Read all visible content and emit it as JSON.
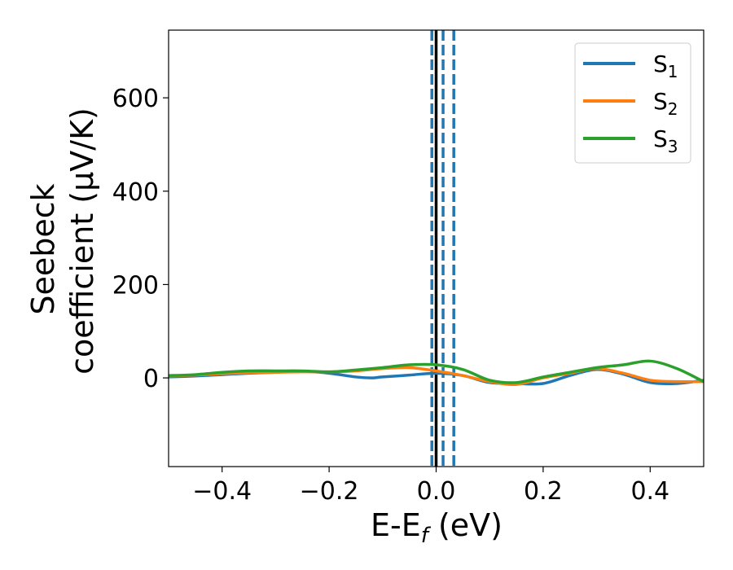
{
  "chart_data": {
    "type": "line",
    "xlabel": "E-E",
    "xlabel_sub": "f",
    "xlabel_unit": " (eV)",
    "ylabel_line1": "Seebeck",
    "ylabel_line2": "coefficient  (μV/K)",
    "xlim": [
      -0.5,
      0.5
    ],
    "ylim": [
      -190,
      745
    ],
    "xticks": [
      -0.4,
      -0.2,
      0.0,
      0.2,
      0.4
    ],
    "xtick_labels": [
      "−0.4",
      "−0.2",
      "0.0",
      "0.2",
      "0.4"
    ],
    "yticks": [
      0,
      200,
      400,
      600
    ],
    "ytick_labels": [
      "0",
      "200",
      "400",
      "600"
    ],
    "legend_position": "top-right",
    "vertical_lines": [
      {
        "x": -0.008,
        "style": "dashed",
        "color": "#1f77b4"
      },
      {
        "x": 0.0,
        "style": "solid",
        "color": "#000000"
      },
      {
        "x": 0.013,
        "style": "dashed",
        "color": "#1f77b4"
      },
      {
        "x": 0.033,
        "style": "dashed",
        "color": "#1f77b4"
      }
    ],
    "series": [
      {
        "name": "S",
        "sub": "1",
        "color": "#1f77b4",
        "x": [
          -0.5,
          -0.45,
          -0.4,
          -0.35,
          -0.3,
          -0.25,
          -0.2,
          -0.15,
          -0.12,
          -0.1,
          -0.05,
          0.0,
          0.05,
          0.1,
          0.15,
          0.2,
          0.25,
          0.3,
          0.35,
          0.4,
          0.45,
          0.5
        ],
        "values": [
          2,
          4,
          7,
          10,
          12,
          14,
          10,
          2,
          0,
          2,
          6,
          10,
          5,
          -10,
          -12,
          -12,
          5,
          18,
          8,
          -10,
          -12,
          -5
        ]
      },
      {
        "name": "S",
        "sub": "2",
        "color": "#ff7f0e",
        "x": [
          -0.5,
          -0.45,
          -0.4,
          -0.35,
          -0.3,
          -0.25,
          -0.2,
          -0.15,
          -0.1,
          -0.05,
          0.0,
          0.05,
          0.1,
          0.15,
          0.2,
          0.25,
          0.3,
          0.35,
          0.4,
          0.45,
          0.5
        ],
        "values": [
          4,
          6,
          9,
          11,
          12,
          13,
          13,
          15,
          20,
          22,
          15,
          5,
          -8,
          -14,
          0,
          10,
          20,
          10,
          -5,
          -8,
          -8
        ]
      },
      {
        "name": "S",
        "sub": "3",
        "color": "#2ca02c",
        "x": [
          -0.5,
          -0.45,
          -0.4,
          -0.35,
          -0.3,
          -0.25,
          -0.2,
          -0.15,
          -0.1,
          -0.05,
          0.0,
          0.05,
          0.1,
          0.15,
          0.2,
          0.25,
          0.3,
          0.35,
          0.4,
          0.45,
          0.5
        ],
        "values": [
          5,
          7,
          12,
          15,
          15,
          15,
          13,
          17,
          22,
          28,
          28,
          18,
          -5,
          -10,
          2,
          12,
          22,
          28,
          36,
          20,
          -8
        ]
      }
    ]
  }
}
